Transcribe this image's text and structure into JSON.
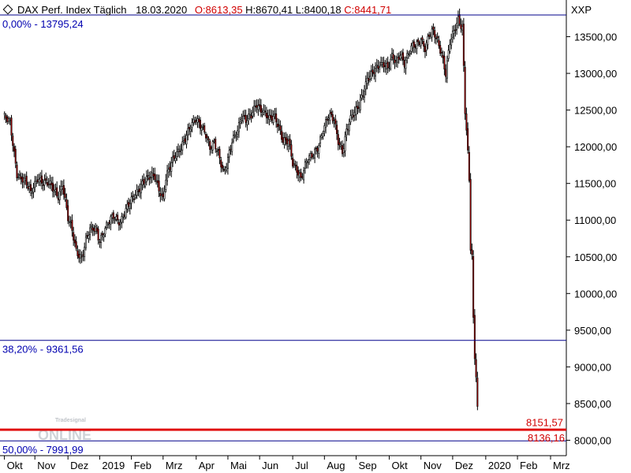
{
  "header": {
    "symbol_icon": "diamond-icon",
    "title": "DAX Perf. Index Täglich",
    "date": "18.03.2020",
    "open": "O:8613,35",
    "high": "H:8670,41",
    "low": "L:8400,18",
    "close": "C:8441,71",
    "red_color": "#d00000"
  },
  "watermark": {
    "brand_small": "Tradesignal",
    "brand_big": "ONLINE"
  },
  "chart_data": {
    "type": "candlestick",
    "title": "DAX Perf. Index Täglich",
    "right_axis_label": "XXP",
    "ylim": [
      7790,
      14000
    ],
    "y_ticks": [
      8000,
      8500,
      9000,
      9500,
      10000,
      10500,
      11000,
      11500,
      12000,
      12500,
      13000,
      13500
    ],
    "y_tick_labels": [
      "8000,00",
      "8500,00",
      "9000,00",
      "9500,00",
      "10000,00",
      "10500,00",
      "11000,00",
      "11500,00",
      "12000,00",
      "12500,00",
      "13000,00",
      "13500,00"
    ],
    "x_labels": [
      "Okt",
      "Nov",
      "Dez",
      "2019",
      "Feb",
      "Mrz",
      "Apr",
      "Mai",
      "Jun",
      "Jul",
      "Aug",
      "Sep",
      "Okt",
      "Nov",
      "Dez",
      "2020",
      "Feb",
      "Mrz"
    ],
    "x_label_positions": [
      0.9,
      23,
      47,
      70,
      93,
      116,
      140,
      163,
      186,
      210,
      233,
      256,
      280,
      303,
      326,
      350,
      373,
      397
    ],
    "x_range": [
      0,
      405
    ],
    "fib_levels": [
      {
        "label": "0,00% - 13795,24",
        "value": 13795.24
      },
      {
        "label": "38,20% - 9361,56",
        "value": 9361.56
      },
      {
        "label": "50,00% - 7991,99",
        "value": 7991.99
      }
    ],
    "red_levels": [
      {
        "label": "8151,57",
        "value": 8151.57
      },
      {
        "label": "8136,16",
        "value": 8136.16
      }
    ],
    "colors": {
      "up": "#ffffff",
      "down": "#b00000",
      "wick": "#000000",
      "fib": "#00008b",
      "support": "#e00000"
    },
    "closes": [
      [
        0,
        12420
      ],
      [
        5,
        12300
      ],
      [
        10,
        11650
      ],
      [
        15,
        11550
      ],
      [
        20,
        11350
      ],
      [
        25,
        11600
      ],
      [
        30,
        11500
      ],
      [
        35,
        11450
      ],
      [
        40,
        11350
      ],
      [
        43,
        11500
      ],
      [
        47,
        11000
      ],
      [
        50,
        10850
      ],
      [
        53,
        10600
      ],
      [
        57,
        10500
      ],
      [
        60,
        10700
      ],
      [
        63,
        10850
      ],
      [
        67,
        10900
      ],
      [
        70,
        10750
      ],
      [
        75,
        10900
      ],
      [
        80,
        11050
      ],
      [
        85,
        11000
      ],
      [
        90,
        11150
      ],
      [
        93,
        11250
      ],
      [
        97,
        11400
      ],
      [
        100,
        11500
      ],
      [
        105,
        11550
      ],
      [
        110,
        11600
      ],
      [
        113,
        11450
      ],
      [
        116,
        11300
      ],
      [
        118,
        11550
      ],
      [
        121,
        11700
      ],
      [
        125,
        11900
      ],
      [
        128,
        12000
      ],
      [
        132,
        12100
      ],
      [
        136,
        12250
      ],
      [
        140,
        12400
      ],
      [
        144,
        12300
      ],
      [
        147,
        12150
      ],
      [
        150,
        11950
      ],
      [
        153,
        12050
      ],
      [
        156,
        11950
      ],
      [
        160,
        11650
      ],
      [
        163,
        11800
      ],
      [
        166,
        12050
      ],
      [
        170,
        12250
      ],
      [
        173,
        12450
      ],
      [
        176,
        12350
      ],
      [
        180,
        12400
      ],
      [
        184,
        12600
      ],
      [
        186,
        12550
      ],
      [
        190,
        12450
      ],
      [
        193,
        12350
      ],
      [
        197,
        12400
      ],
      [
        200,
        12300
      ],
      [
        203,
        12100
      ],
      [
        207,
        12050
      ],
      [
        210,
        11750
      ],
      [
        213,
        11700
      ],
      [
        216,
        11600
      ],
      [
        220,
        11800
      ],
      [
        224,
        11850
      ],
      [
        228,
        12000
      ],
      [
        232,
        12250
      ],
      [
        236,
        12400
      ],
      [
        240,
        12350
      ],
      [
        243,
        12100
      ],
      [
        246,
        11950
      ],
      [
        249,
        12200
      ],
      [
        252,
        12350
      ],
      [
        256,
        12500
      ],
      [
        260,
        12700
      ],
      [
        264,
        12900
      ],
      [
        267,
        12950
      ],
      [
        270,
        13050
      ],
      [
        273,
        13150
      ],
      [
        276,
        13150
      ],
      [
        279,
        13050
      ],
      [
        282,
        13200
      ],
      [
        285,
        13150
      ],
      [
        288,
        13300
      ],
      [
        291,
        13150
      ],
      [
        294,
        13250
      ],
      [
        297,
        13350
      ],
      [
        300,
        13400
      ],
      [
        303,
        13500
      ],
      [
        306,
        13350
      ],
      [
        309,
        13500
      ],
      [
        312,
        13550
      ],
      [
        315,
        13450
      ],
      [
        318,
        13300
      ],
      [
        321,
        13000
      ],
      [
        324,
        13400
      ],
      [
        327,
        13550
      ],
      [
        330,
        13750
      ],
      [
        333,
        13650
      ],
      [
        334,
        13100
      ],
      [
        335,
        12500
      ],
      [
        336,
        12250
      ],
      [
        337,
        11900
      ],
      [
        338,
        11500
      ],
      [
        339,
        10600
      ],
      [
        340,
        10500
      ],
      [
        341,
        9600
      ],
      [
        342,
        9100
      ],
      [
        343,
        8900
      ],
      [
        344,
        8450
      ]
    ]
  }
}
